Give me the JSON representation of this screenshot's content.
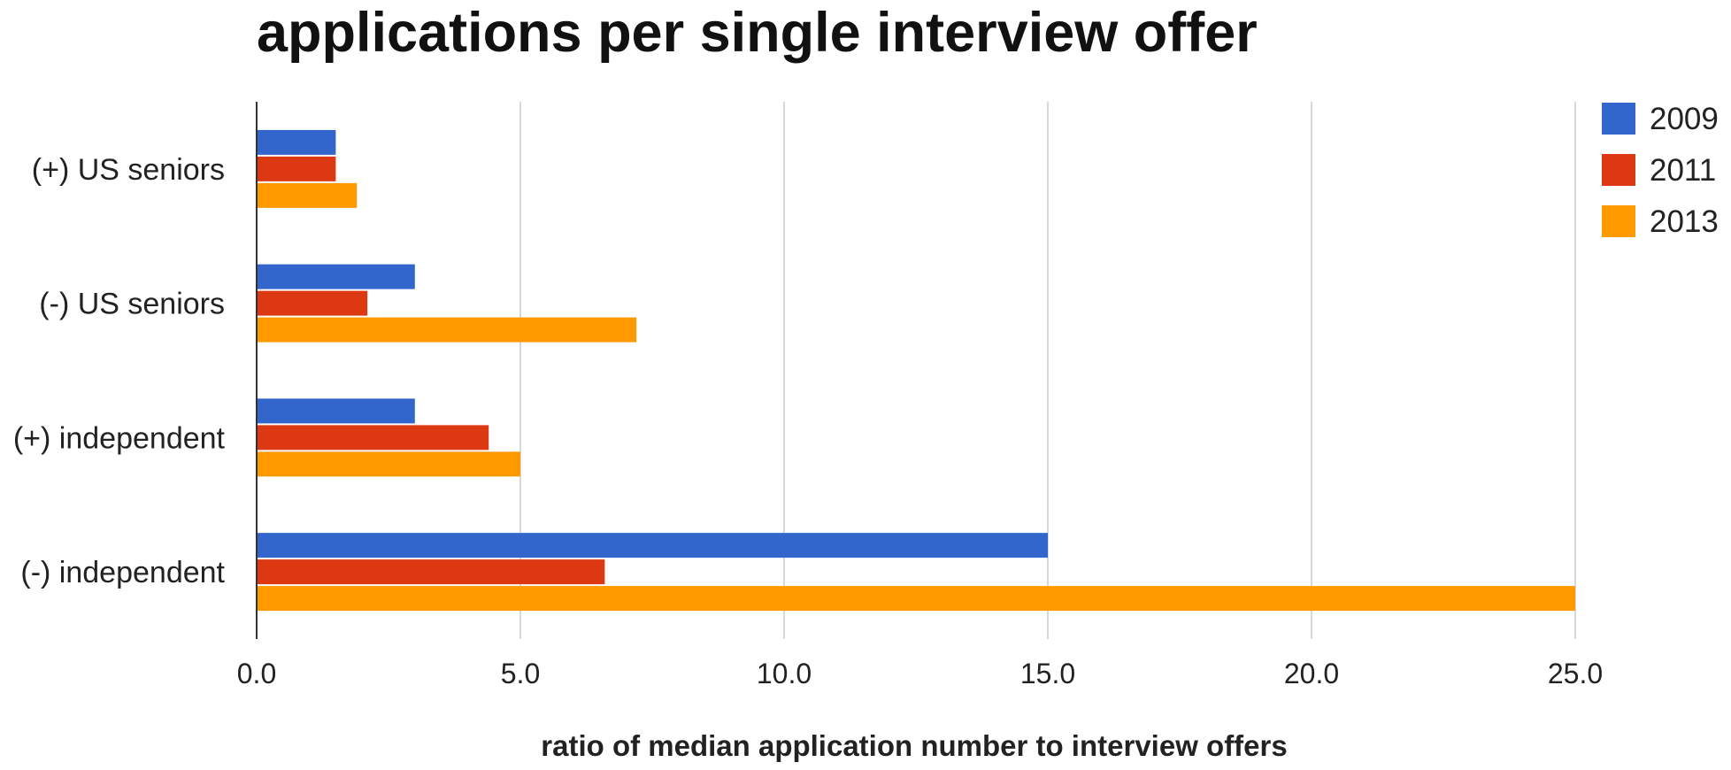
{
  "chart_data": {
    "type": "bar",
    "orientation": "horizontal",
    "title": "applications per single interview offer",
    "xlabel": "ratio of median application number to interview offers",
    "ylabel": "",
    "categories": [
      "(+) US seniors",
      "(-) US seniors",
      "(+) independent",
      "(-) independent"
    ],
    "series": [
      {
        "name": "2009",
        "color": "#3366cc",
        "values": [
          1.5,
          3.0,
          3.0,
          15.0
        ]
      },
      {
        "name": "2011",
        "color": "#dc3912",
        "values": [
          1.5,
          2.1,
          4.4,
          6.6
        ]
      },
      {
        "name": "2013",
        "color": "#ff9900",
        "values": [
          1.9,
          7.2,
          5.0,
          25.0
        ]
      }
    ],
    "xlim": [
      0,
      25
    ],
    "xticks": [
      0,
      5,
      10,
      15,
      20,
      25
    ],
    "xtick_labels": [
      "0.0",
      "5.0",
      "10.0",
      "15.0",
      "20.0",
      "25.0"
    ],
    "grid": "vertical",
    "legend": "top-right"
  }
}
